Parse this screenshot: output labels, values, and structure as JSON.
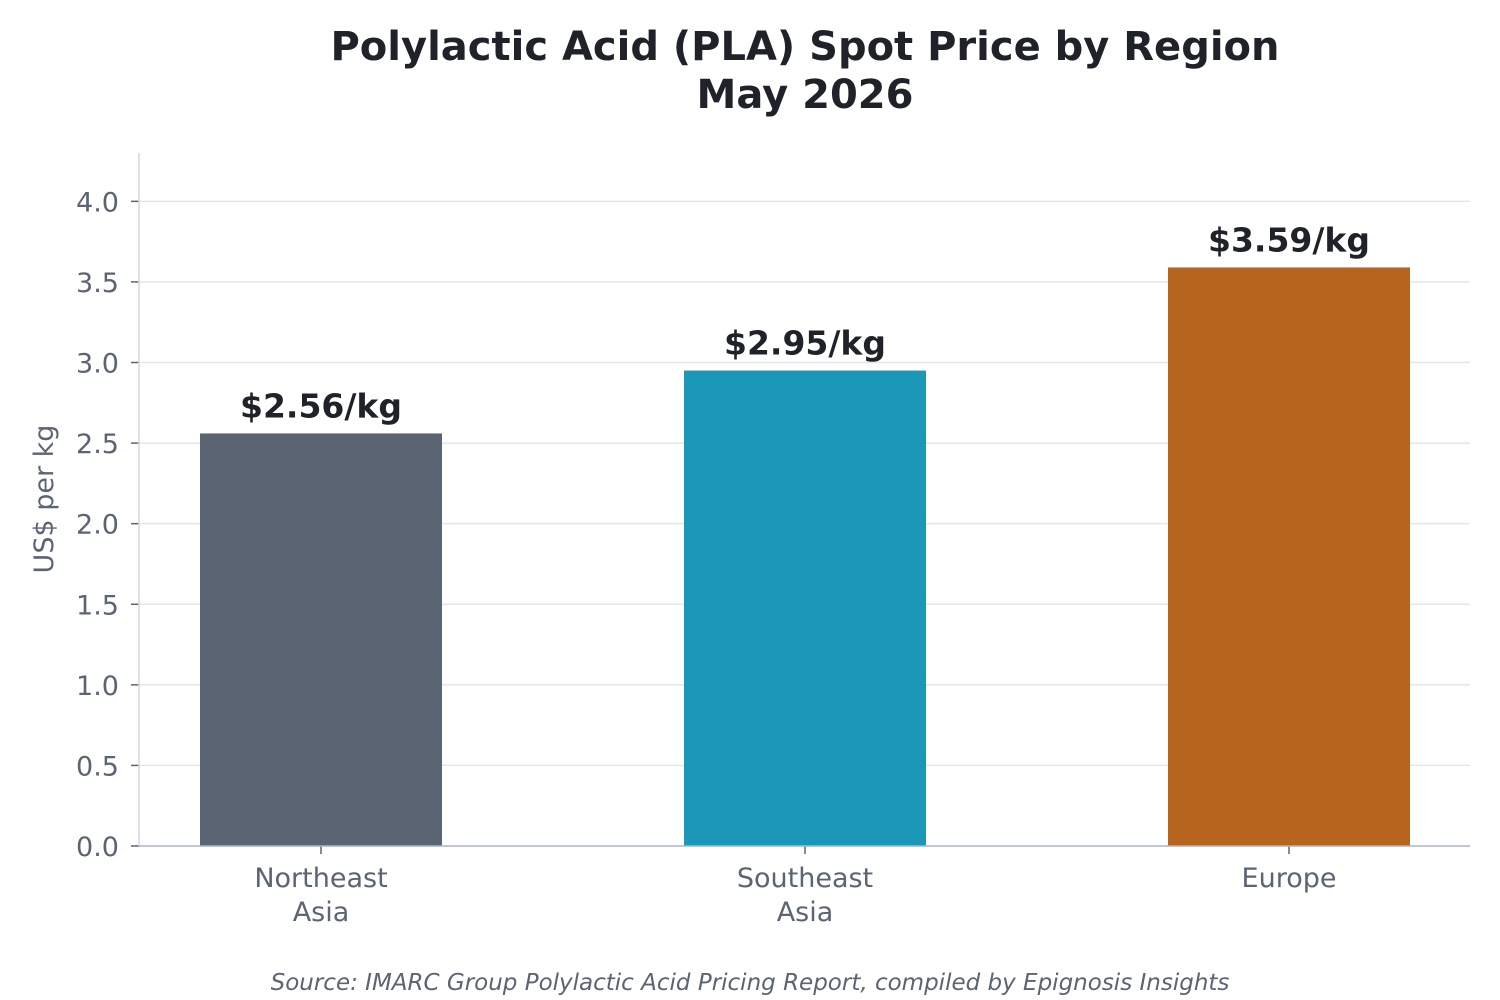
{
  "chart_data": {
    "type": "bar",
    "title_lines": [
      "Polylactic Acid (PLA) Spot Price by Region",
      "May 2026"
    ],
    "ylabel": "US$ per kg",
    "xlabel": "",
    "categories": [
      [
        "Northeast",
        "Asia"
      ],
      [
        "Southeast",
        "Asia"
      ],
      [
        "Europe"
      ]
    ],
    "values": [
      2.56,
      2.95,
      3.59
    ],
    "data_labels": [
      "$2.56/kg",
      "$2.95/kg",
      "$3.59/kg"
    ],
    "colors": [
      "#5b6472",
      "#1b98b8",
      "#b5651e"
    ],
    "ylim": [
      0,
      4.3
    ],
    "yticks": [
      0.0,
      0.5,
      1.0,
      1.5,
      2.0,
      2.5,
      3.0,
      3.5,
      4.0
    ],
    "ytick_labels": [
      "0.0",
      "0.5",
      "1.0",
      "1.5",
      "2.0",
      "2.5",
      "3.0",
      "3.5",
      "4.0"
    ],
    "grid": "horizontal",
    "legend": "none"
  },
  "source": "Source: IMARC Group Polylactic Acid Pricing Report, compiled by Epignosis Insights"
}
